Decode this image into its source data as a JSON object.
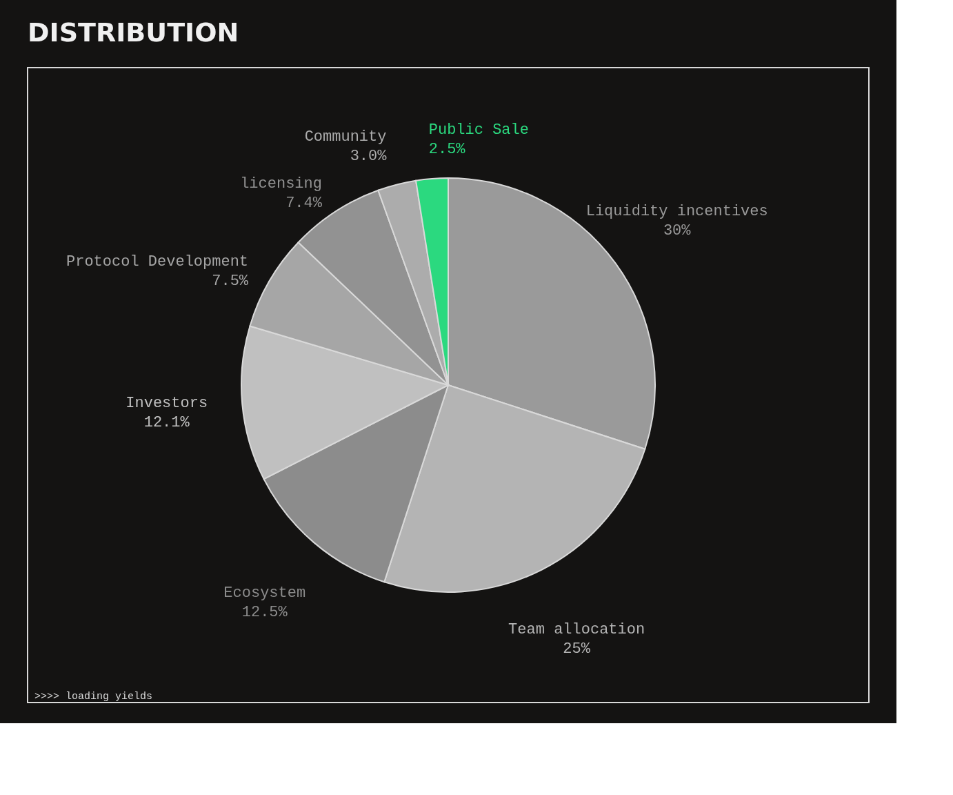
{
  "chart_data": {
    "type": "pie",
    "title": "DISTRIBUTION",
    "categories": [
      "Liquidity incentives",
      "Team allocation",
      "Ecosystem",
      "Investors",
      "Protocol Development",
      "licensing",
      "Community",
      "Public Sale"
    ],
    "values": [
      30,
      25,
      12.5,
      12.1,
      7.5,
      7.4,
      3.0,
      2.5
    ],
    "value_labels": [
      "30%",
      "25%",
      "12.5%",
      "12.1%",
      "7.5%",
      "7.4%",
      "3.0%",
      "2.5%"
    ],
    "colors": [
      "#9a9a9a",
      "#b4b4b4",
      "#8c8c8c",
      "#c0c0c0",
      "#a6a6a6",
      "#929292",
      "#acacac",
      "#2bd97f"
    ],
    "legend": false,
    "annotations": [
      ">>>> loading yields"
    ]
  }
}
